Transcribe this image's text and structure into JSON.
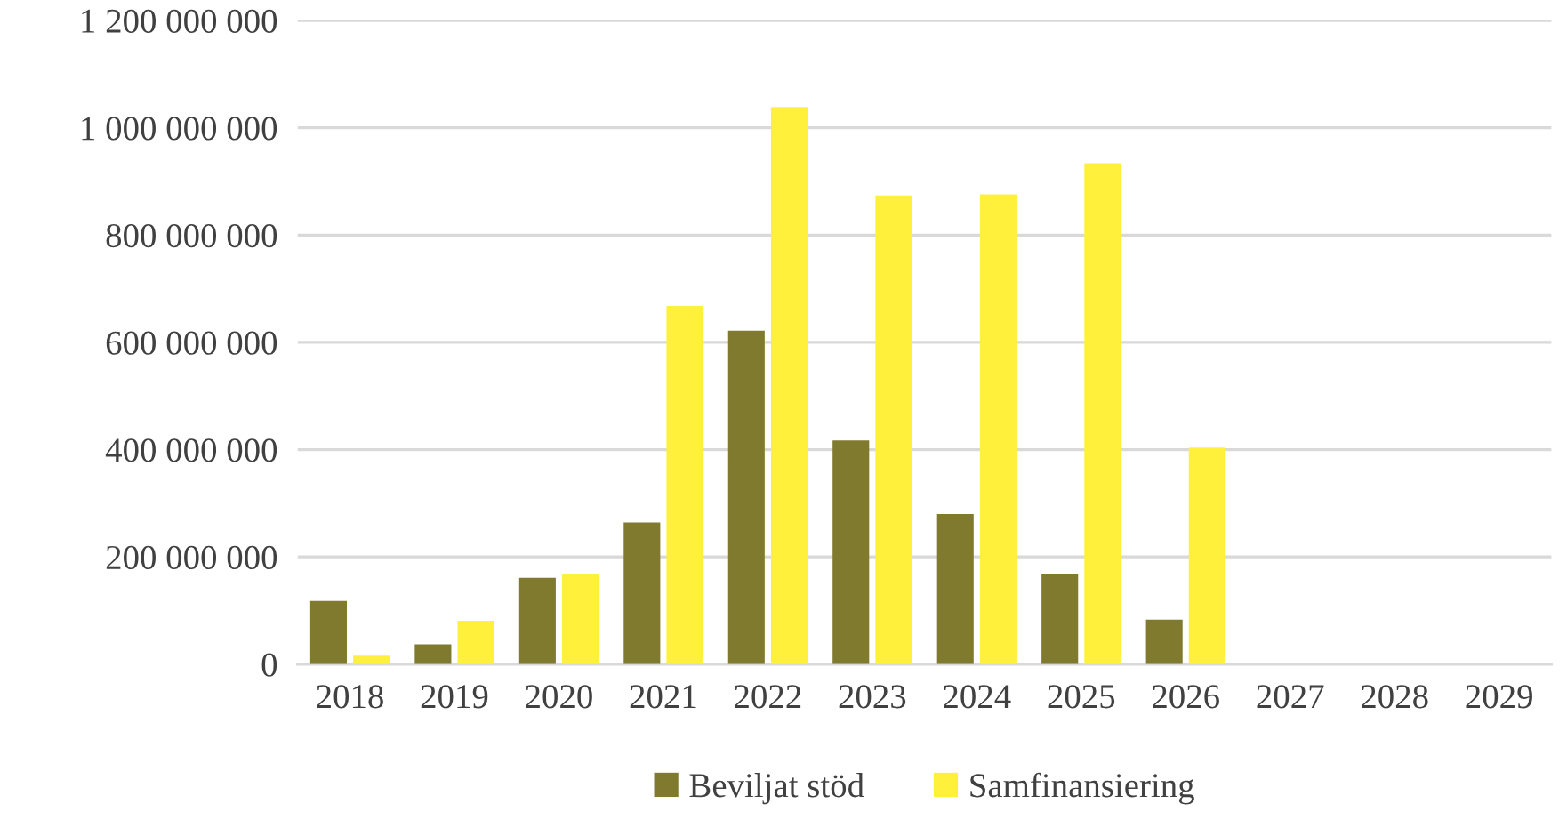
{
  "chart_data": {
    "type": "bar",
    "categories": [
      "2018",
      "2019",
      "2020",
      "2021",
      "2022",
      "2023",
      "2024",
      "2025",
      "2026",
      "2027",
      "2028",
      "2029"
    ],
    "series": [
      {
        "name": "Beviljat stöd",
        "color": "#7f7a2e",
        "values": [
          118000000,
          37000000,
          161000000,
          264000000,
          622000000,
          417000000,
          280000000,
          169000000,
          83000000,
          0,
          0,
          0
        ]
      },
      {
        "name": "Samfinansiering",
        "color": "#fff03c",
        "values": [
          16000000,
          81000000,
          169000000,
          668000000,
          1039000000,
          874000000,
          876000000,
          934000000,
          404000000,
          0,
          0,
          0
        ]
      }
    ],
    "ylim": [
      0,
      1200000000
    ],
    "yticks": [
      0,
      {
        "value": 200000000,
        "label": "200 000 000"
      },
      {
        "value": 400000000,
        "label": "400 000 000"
      },
      {
        "value": 600000000,
        "label": "600 000 000"
      },
      {
        "value": 800000000,
        "label": "800 000 000"
      },
      {
        "value": 1000000000,
        "label": "1 000 000 000"
      },
      {
        "value": 1200000000,
        "label": "1 200 000 000"
      }
    ],
    "grid": "y",
    "legend": "bottom"
  }
}
